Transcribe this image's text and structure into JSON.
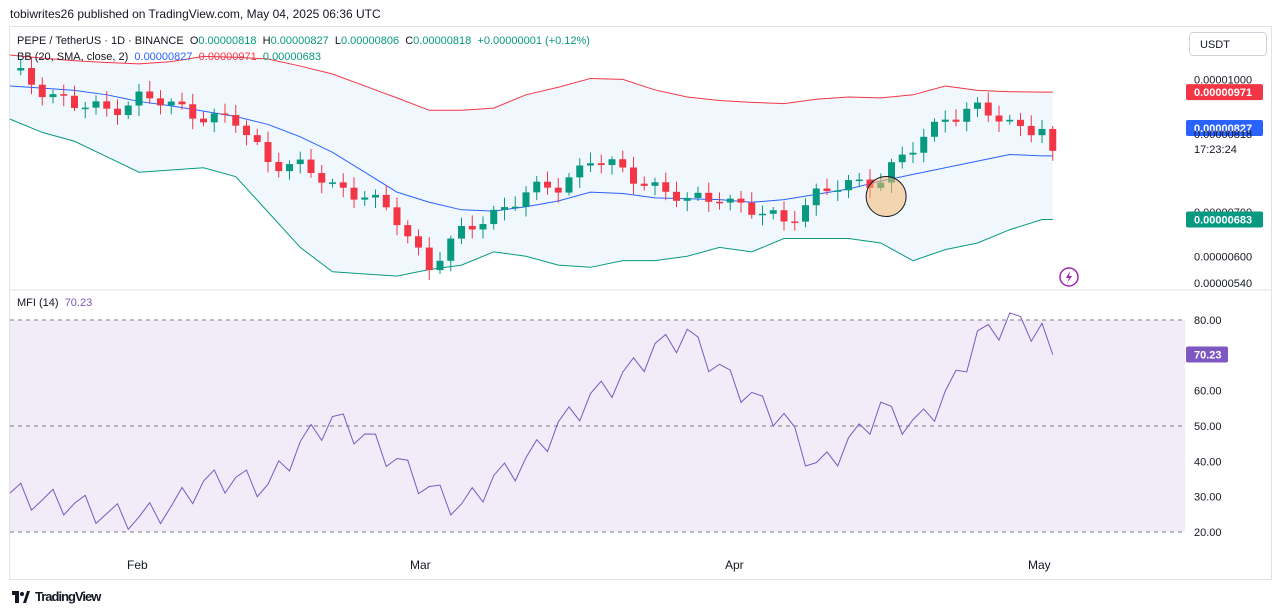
{
  "header": {
    "publisher": "tobiwrites26 published on TradingView.com, May 04, 2025 06:36 UTC"
  },
  "legend": {
    "symbol": "PEPE / TetherUS · 1D · BINANCE",
    "o_label": "O",
    "o_value": "0.00000818",
    "h_label": "H",
    "h_value": "0.00000827",
    "l_label": "L",
    "l_value": "0.00000806",
    "c_label": "C",
    "c_value": "0.00000818",
    "change": "+0.00000001 (+0.12%)",
    "bb_label": "BB (20, SMA, close, 2)",
    "bb_basis": "0.00000827",
    "bb_upper": "0.00000971",
    "bb_lower": "0.00000683",
    "mfi_label": "MFI (14)",
    "mfi_value": "70.23"
  },
  "currency": "USDT",
  "price_axis": {
    "ticks": [
      "0.00001000",
      "0.00000900",
      "0.00000700",
      "0.00000600",
      "0.00000540"
    ],
    "badges": {
      "upper": "0.00000971",
      "basis": "0.00000827",
      "price": "0.00000818",
      "countdown": "17:23:24",
      "lower": "0.00000683"
    }
  },
  "mfi_axis": {
    "ticks": [
      "80.00",
      "60.00",
      "50.00",
      "40.00",
      "30.00",
      "20.00"
    ],
    "badge": "70.23"
  },
  "time_axis": [
    "Feb",
    "Mar",
    "Apr",
    "May"
  ],
  "footer": {
    "brand": "TradingView"
  },
  "colors": {
    "up": "#089981",
    "down": "#f23645",
    "basis": "#2962ff",
    "upper": "#f23645",
    "lower": "#089981",
    "mfi": "#7e57c2",
    "band_fill": "#e3f2fd",
    "mfi_fill": "#ede7f6"
  },
  "chart_data": [
    {
      "type": "line",
      "title": "PEPE / TetherUS · 1D · BINANCE",
      "xlabel": "",
      "ylabel": "",
      "ylim": [
        5.2e-06,
        1.04e-05
      ],
      "x_ticks": [
        "Feb",
        "Mar",
        "Apr",
        "May"
      ],
      "x": [
        0,
        3,
        6,
        9,
        12,
        15,
        18,
        21,
        24,
        27,
        30,
        33,
        36,
        39,
        42,
        45,
        48,
        51,
        54,
        57,
        60,
        63,
        66,
        69,
        72,
        75,
        78,
        81,
        84,
        87,
        90,
        93,
        96,
        97
      ],
      "series": [
        {
          "name": "Upper",
          "values": [
            1055,
            1048,
            1042,
            1038,
            1035,
            1040,
            1052,
            1050,
            1046,
            1030,
            1012,
            985,
            958,
            930,
            930,
            935,
            965,
            982,
            1002,
            1000,
            976,
            960,
            952,
            948,
            945,
            955,
            960,
            958,
            965,
            985,
            975,
            972,
            971,
            971
          ]
        },
        {
          "name": "Basis",
          "values": [
            985,
            980,
            975,
            965,
            950,
            940,
            928,
            916,
            898,
            870,
            835,
            790,
            745,
            722,
            705,
            702,
            712,
            725,
            745,
            742,
            732,
            730,
            728,
            722,
            728,
            740,
            752,
            770,
            785,
            800,
            815,
            830,
            827,
            827
          ]
        },
        {
          "name": "Lower",
          "values": [
            910,
            880,
            860,
            825,
            790,
            795,
            800,
            780,
            700,
            620,
            565,
            560,
            555,
            570,
            580,
            610,
            600,
            580,
            575,
            590,
            590,
            600,
            620,
            610,
            640,
            640,
            640,
            630,
            590,
            615,
            630,
            660,
            683,
            683
          ]
        },
        {
          "name": "Close",
          "values": [
            1020,
            980,
            940,
            930,
            960,
            940,
            920,
            900,
            820,
            800,
            760,
            740,
            680,
            580,
            650,
            700,
            740,
            760,
            820,
            790,
            760,
            720,
            740,
            700,
            680,
            740,
            760,
            780,
            840,
            920,
            930,
            900,
            890,
            818
          ]
        }
      ]
    },
    {
      "type": "line",
      "title": "MFI (14)",
      "xlabel": "",
      "ylabel": "",
      "ylim": [
        20,
        82
      ],
      "levels": [
        80,
        50,
        20
      ],
      "x": [
        0,
        3,
        6,
        9,
        12,
        15,
        18,
        21,
        24,
        27,
        30,
        33,
        36,
        39,
        42,
        45,
        48,
        51,
        54,
        57,
        60,
        63,
        66,
        69,
        72,
        75,
        78,
        81,
        84,
        87,
        90,
        93,
        96,
        97
      ],
      "series": [
        {
          "name": "MFI",
          "values": [
            31,
            29,
            28,
            25,
            24,
            27,
            34,
            35,
            33,
            45,
            52,
            47,
            40,
            32,
            27,
            35,
            40,
            50,
            58,
            64,
            72,
            76,
            66,
            58,
            52,
            38,
            45,
            55,
            50,
            58,
            75,
            80,
            77,
            70.23
          ]
        }
      ]
    }
  ]
}
